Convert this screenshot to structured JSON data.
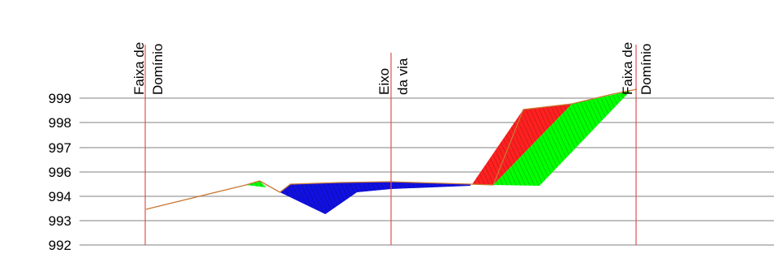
{
  "chart_data": {
    "type": "area",
    "title": "",
    "xlabel": "",
    "ylabel": "",
    "ylim": [
      992,
      999.5
    ],
    "y_ticks": [
      {
        "value": 992,
        "label": "992"
      },
      {
        "value": 993,
        "label": "993"
      },
      {
        "value": 994,
        "label": "994"
      },
      {
        "value": 996,
        "label": "996"
      },
      {
        "value": 997,
        "label": "997"
      },
      {
        "value": 998,
        "label": "998"
      },
      {
        "value": 999,
        "label": "999"
      }
    ],
    "vertical_markers": [
      {
        "name": "faixa-dominio-left",
        "line1": "Faixa de",
        "line2": "Domínio"
      },
      {
        "name": "eixo-da-via",
        "line1": "Eixo",
        "line2": "da via"
      },
      {
        "name": "faixa-dominio-right",
        "line1": "Faixa de",
        "line2": "Domínio"
      }
    ],
    "colors": {
      "grid": "#9a9a9a",
      "marker": "#e05050",
      "terrain": "#c87832",
      "fill_cut": "#00ff00",
      "fill_red": "#ff2020",
      "fill_blue": "#1010e0",
      "hatch": "#4a4a4a"
    }
  }
}
